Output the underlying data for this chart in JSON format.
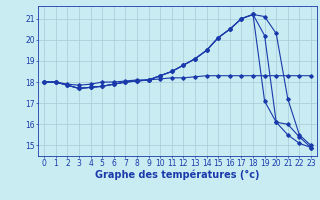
{
  "bg_color": "#c8ecf2",
  "line_color": "#1a3aab",
  "grid_color": "#a8ccd8",
  "xlabel": "Graphe des températures (°c)",
  "xlabel_fontsize": 7,
  "tick_fontsize": 5.5,
  "ylabel_values": [
    15,
    16,
    17,
    18,
    19,
    20,
    21
  ],
  "xlim": [
    -0.5,
    23.5
  ],
  "ylim": [
    14.5,
    21.6
  ],
  "series": {
    "line1": {
      "x": [
        0,
        1,
        2,
        3,
        4,
        5,
        6,
        7,
        8,
        9,
        10,
        11,
        12,
        13,
        14,
        15,
        16,
        17,
        18,
        19,
        20,
        21,
        22,
        23
      ],
      "y": [
        18.0,
        18.0,
        17.9,
        17.85,
        17.9,
        18.0,
        18.0,
        18.05,
        18.1,
        18.1,
        18.15,
        18.2,
        18.2,
        18.25,
        18.3,
        18.3,
        18.3,
        18.3,
        18.3,
        18.3,
        18.3,
        18.3,
        18.3,
        18.3
      ]
    },
    "line2": {
      "x": [
        0,
        1,
        2,
        3,
        4,
        5,
        6,
        7,
        8,
        9,
        10,
        11,
        12,
        13,
        14,
        15,
        16,
        17,
        18,
        19,
        20,
        21,
        22,
        23
      ],
      "y": [
        18.0,
        18.0,
        17.85,
        17.7,
        17.75,
        17.8,
        17.9,
        18.0,
        18.05,
        18.1,
        18.3,
        18.5,
        18.8,
        19.1,
        19.5,
        20.1,
        20.5,
        21.0,
        21.2,
        21.1,
        20.3,
        17.2,
        15.5,
        15.0
      ]
    },
    "line3": {
      "x": [
        0,
        1,
        2,
        3,
        4,
        5,
        6,
        7,
        8,
        9,
        10,
        11,
        12,
        13,
        14,
        15,
        16,
        17,
        18,
        19,
        20,
        21,
        22,
        23
      ],
      "y": [
        18.0,
        18.0,
        17.85,
        17.7,
        17.75,
        17.8,
        17.9,
        18.0,
        18.05,
        18.1,
        18.3,
        18.5,
        18.8,
        19.1,
        19.5,
        20.1,
        20.5,
        21.0,
        21.2,
        20.2,
        16.1,
        16.0,
        15.4,
        14.9
      ]
    },
    "line4": {
      "x": [
        0,
        1,
        2,
        3,
        4,
        5,
        6,
        7,
        8,
        9,
        10,
        11,
        12,
        13,
        14,
        15,
        16,
        17,
        18,
        19,
        20,
        21,
        22,
        23
      ],
      "y": [
        18.0,
        18.0,
        17.85,
        17.7,
        17.75,
        17.8,
        17.9,
        18.0,
        18.05,
        18.1,
        18.3,
        18.5,
        18.8,
        19.1,
        19.5,
        20.1,
        20.5,
        21.0,
        21.2,
        17.1,
        16.1,
        15.5,
        15.1,
        14.9
      ]
    }
  }
}
